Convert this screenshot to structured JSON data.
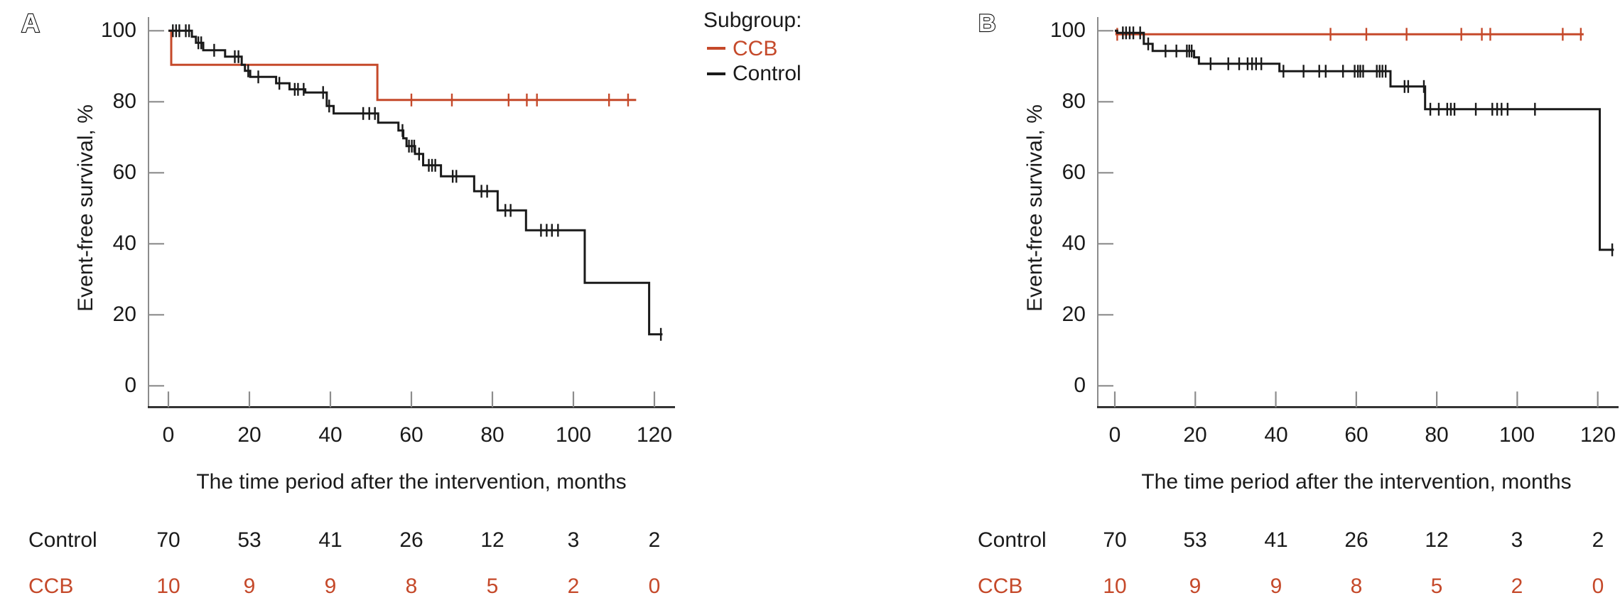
{
  "figure": {
    "colors": {
      "ccb": "#c5492a",
      "control": "#1a1a1a",
      "axis": "#8c8c8c",
      "baseline": "#1a1a1a"
    },
    "legend": {
      "title": "Subgroup:",
      "entries": [
        {
          "label": "CCB",
          "color_key": "ccb"
        },
        {
          "label": "Control",
          "color_key": "control"
        }
      ]
    }
  },
  "chart_data": [
    {
      "type": "line",
      "subtype": "kaplan-meier-step",
      "panel_label": "A",
      "xlabel": "The time period after the intervention, months",
      "ylabel": "Event-free survival, %",
      "xlim": [
        0,
        120
      ],
      "ylim": [
        0,
        100
      ],
      "x_ticks": [
        0,
        20,
        40,
        60,
        80,
        100,
        120
      ],
      "y_ticks": [
        0,
        20,
        40,
        60,
        80,
        100
      ],
      "grid": false,
      "legend_position": "right-of-panel",
      "series": [
        {
          "name": "CCB",
          "color_key": "ccb",
          "start": [
            0,
            100
          ],
          "steps": [
            [
              0.7,
              90.4
            ],
            [
              51.6,
              80.5
            ]
          ],
          "end": 115.5,
          "censors": [
            [
              60,
              80.5
            ],
            [
              70,
              80.5
            ],
            [
              84,
              80.5
            ],
            [
              88.5,
              80.5
            ],
            [
              91,
              80.5
            ],
            [
              108.8,
              80.5
            ],
            [
              113.5,
              80.5
            ]
          ]
        },
        {
          "name": "Control",
          "color_key": "control",
          "start": [
            0,
            100
          ],
          "steps": [
            [
              5.8,
              98.3
            ],
            [
              6.8,
              96.6
            ],
            [
              8.6,
              94.5
            ],
            [
              14,
              92.7
            ],
            [
              18.1,
              90.4
            ],
            [
              18.9,
              88.7
            ],
            [
              20.2,
              87
            ],
            [
              26.6,
              85.2
            ],
            [
              29.9,
              83.5
            ],
            [
              33.8,
              82.6
            ],
            [
              39.1,
              78.8
            ],
            [
              40.8,
              76.7
            ],
            [
              51.8,
              74.1
            ],
            [
              56.8,
              71.9
            ],
            [
              58,
              69.7
            ],
            [
              58.8,
              67.5
            ],
            [
              60.9,
              65.3
            ],
            [
              62.9,
              62.1
            ],
            [
              67.3,
              59
            ],
            [
              75.5,
              54.8
            ],
            [
              81.3,
              49.4
            ],
            [
              88.3,
              43.8
            ],
            [
              102.8,
              29
            ],
            [
              118.7,
              14.5
            ]
          ],
          "end": 122,
          "censors": [
            [
              1.1,
              100
            ],
            [
              1.9,
              100
            ],
            [
              2.7,
              100
            ],
            [
              4.3,
              100
            ],
            [
              5.1,
              100
            ],
            [
              7.4,
              96.6
            ],
            [
              8.1,
              96.6
            ],
            [
              11.3,
              94.5
            ],
            [
              16.4,
              92.7
            ],
            [
              17.3,
              92.7
            ],
            [
              19.7,
              88.7
            ],
            [
              22.2,
              87
            ],
            [
              27.4,
              85.2
            ],
            [
              31.2,
              83.5
            ],
            [
              32,
              83.5
            ],
            [
              33.4,
              83.5
            ],
            [
              38.2,
              82.6
            ],
            [
              39.7,
              78.8
            ],
            [
              48.1,
              76.7
            ],
            [
              49.6,
              76.7
            ],
            [
              51,
              76.7
            ],
            [
              57.8,
              71.9
            ],
            [
              59.4,
              67.5
            ],
            [
              60.1,
              67.5
            ],
            [
              60.7,
              67.5
            ],
            [
              61.9,
              65.3
            ],
            [
              64.3,
              62.1
            ],
            [
              65.1,
              62.1
            ],
            [
              65.9,
              62.1
            ],
            [
              70.2,
              59
            ],
            [
              71.1,
              59
            ],
            [
              77.3,
              54.8
            ],
            [
              78.7,
              54.8
            ],
            [
              83.2,
              49.4
            ],
            [
              84.5,
              49.4
            ],
            [
              92,
              43.8
            ],
            [
              93.4,
              43.8
            ],
            [
              94.7,
              43.8
            ],
            [
              96.2,
              43.8
            ],
            [
              121.6,
              14.5
            ]
          ]
        }
      ],
      "at_risk": {
        "times": [
          0,
          20,
          40,
          60,
          80,
          100,
          120
        ],
        "rows": [
          {
            "label": "Control",
            "color_key": "control",
            "values": [
              70,
              53,
              41,
              26,
              12,
              3,
              2
            ]
          },
          {
            "label": "CCB",
            "color_key": "ccb",
            "values": [
              10,
              9,
              9,
              8,
              5,
              2,
              0
            ]
          }
        ]
      }
    },
    {
      "type": "line",
      "subtype": "kaplan-meier-step",
      "panel_label": "B",
      "xlabel": "The time period after the intervention, months",
      "ylabel": "Event-free survival, %",
      "xlim": [
        0,
        120
      ],
      "ylim": [
        0,
        100
      ],
      "x_ticks": [
        0,
        20,
        40,
        60,
        80,
        100,
        120
      ],
      "y_ticks": [
        0,
        20,
        40,
        60,
        80,
        100
      ],
      "grid": false,
      "series": [
        {
          "name": "CCB",
          "color_key": "ccb",
          "start": [
            0,
            100
          ],
          "steps": [
            [
              0.4,
              99
            ]
          ],
          "end": 116.5,
          "censors": [
            [
              0.6,
              99
            ],
            [
              53.6,
              99
            ],
            [
              62.5,
              99
            ],
            [
              72.5,
              99
            ],
            [
              86.1,
              99
            ],
            [
              91.2,
              99
            ],
            [
              93.3,
              99
            ],
            [
              111.3,
              99
            ],
            [
              115.8,
              99
            ]
          ]
        },
        {
          "name": "Control",
          "color_key": "control",
          "start": [
            0,
            100
          ],
          "steps": [
            [
              0.6,
              99.4
            ],
            [
              7.2,
              96.3
            ],
            [
              9.4,
              94.3
            ],
            [
              19.7,
              92.5
            ],
            [
              20.9,
              90.7
            ],
            [
              40.9,
              88.6
            ],
            [
              68.5,
              84.3
            ],
            [
              77.1,
              77.9
            ],
            [
              120.5,
              38.3
            ]
          ],
          "end": 124,
          "censors": [
            [
              2,
              99.4
            ],
            [
              2.8,
              99.4
            ],
            [
              3.7,
              99.4
            ],
            [
              4.6,
              99.4
            ],
            [
              6.3,
              99.4
            ],
            [
              8.3,
              96.3
            ],
            [
              12.6,
              94.3
            ],
            [
              15.3,
              94.3
            ],
            [
              17.9,
              94.3
            ],
            [
              18.5,
              94.3
            ],
            [
              19.1,
              94.3
            ],
            [
              23.8,
              90.7
            ],
            [
              28.2,
              90.7
            ],
            [
              30.9,
              90.7
            ],
            [
              33,
              90.7
            ],
            [
              34.1,
              90.7
            ],
            [
              35.1,
              90.7
            ],
            [
              36.4,
              90.7
            ],
            [
              41.9,
              88.6
            ],
            [
              46.9,
              88.6
            ],
            [
              50.8,
              88.6
            ],
            [
              52.4,
              88.6
            ],
            [
              56.7,
              88.6
            ],
            [
              59.6,
              88.6
            ],
            [
              60.4,
              88.6
            ],
            [
              61,
              88.6
            ],
            [
              61.7,
              88.6
            ],
            [
              65.1,
              88.6
            ],
            [
              65.8,
              88.6
            ],
            [
              66.5,
              88.6
            ],
            [
              67.3,
              88.6
            ],
            [
              72,
              84.3
            ],
            [
              72.9,
              84.3
            ],
            [
              76.8,
              84.3
            ],
            [
              78.4,
              77.9
            ],
            [
              80.5,
              77.9
            ],
            [
              82.6,
              77.9
            ],
            [
              83.5,
              77.9
            ],
            [
              84.4,
              77.9
            ],
            [
              89.7,
              77.9
            ],
            [
              93.8,
              77.9
            ],
            [
              95,
              77.9
            ],
            [
              96.1,
              77.9
            ],
            [
              97.6,
              77.9
            ],
            [
              104.4,
              77.9
            ],
            [
              123.6,
              38.3
            ]
          ],
          "terminal_drop_value": 38.3
        }
      ],
      "at_risk": {
        "times": [
          0,
          20,
          40,
          60,
          80,
          100,
          120
        ],
        "rows": [
          {
            "label": "Control",
            "color_key": "control",
            "values": [
              70,
              53,
              41,
              26,
              12,
              3,
              2
            ]
          },
          {
            "label": "CCB",
            "color_key": "ccb",
            "values": [
              10,
              9,
              9,
              8,
              5,
              2,
              0
            ]
          }
        ]
      }
    }
  ]
}
